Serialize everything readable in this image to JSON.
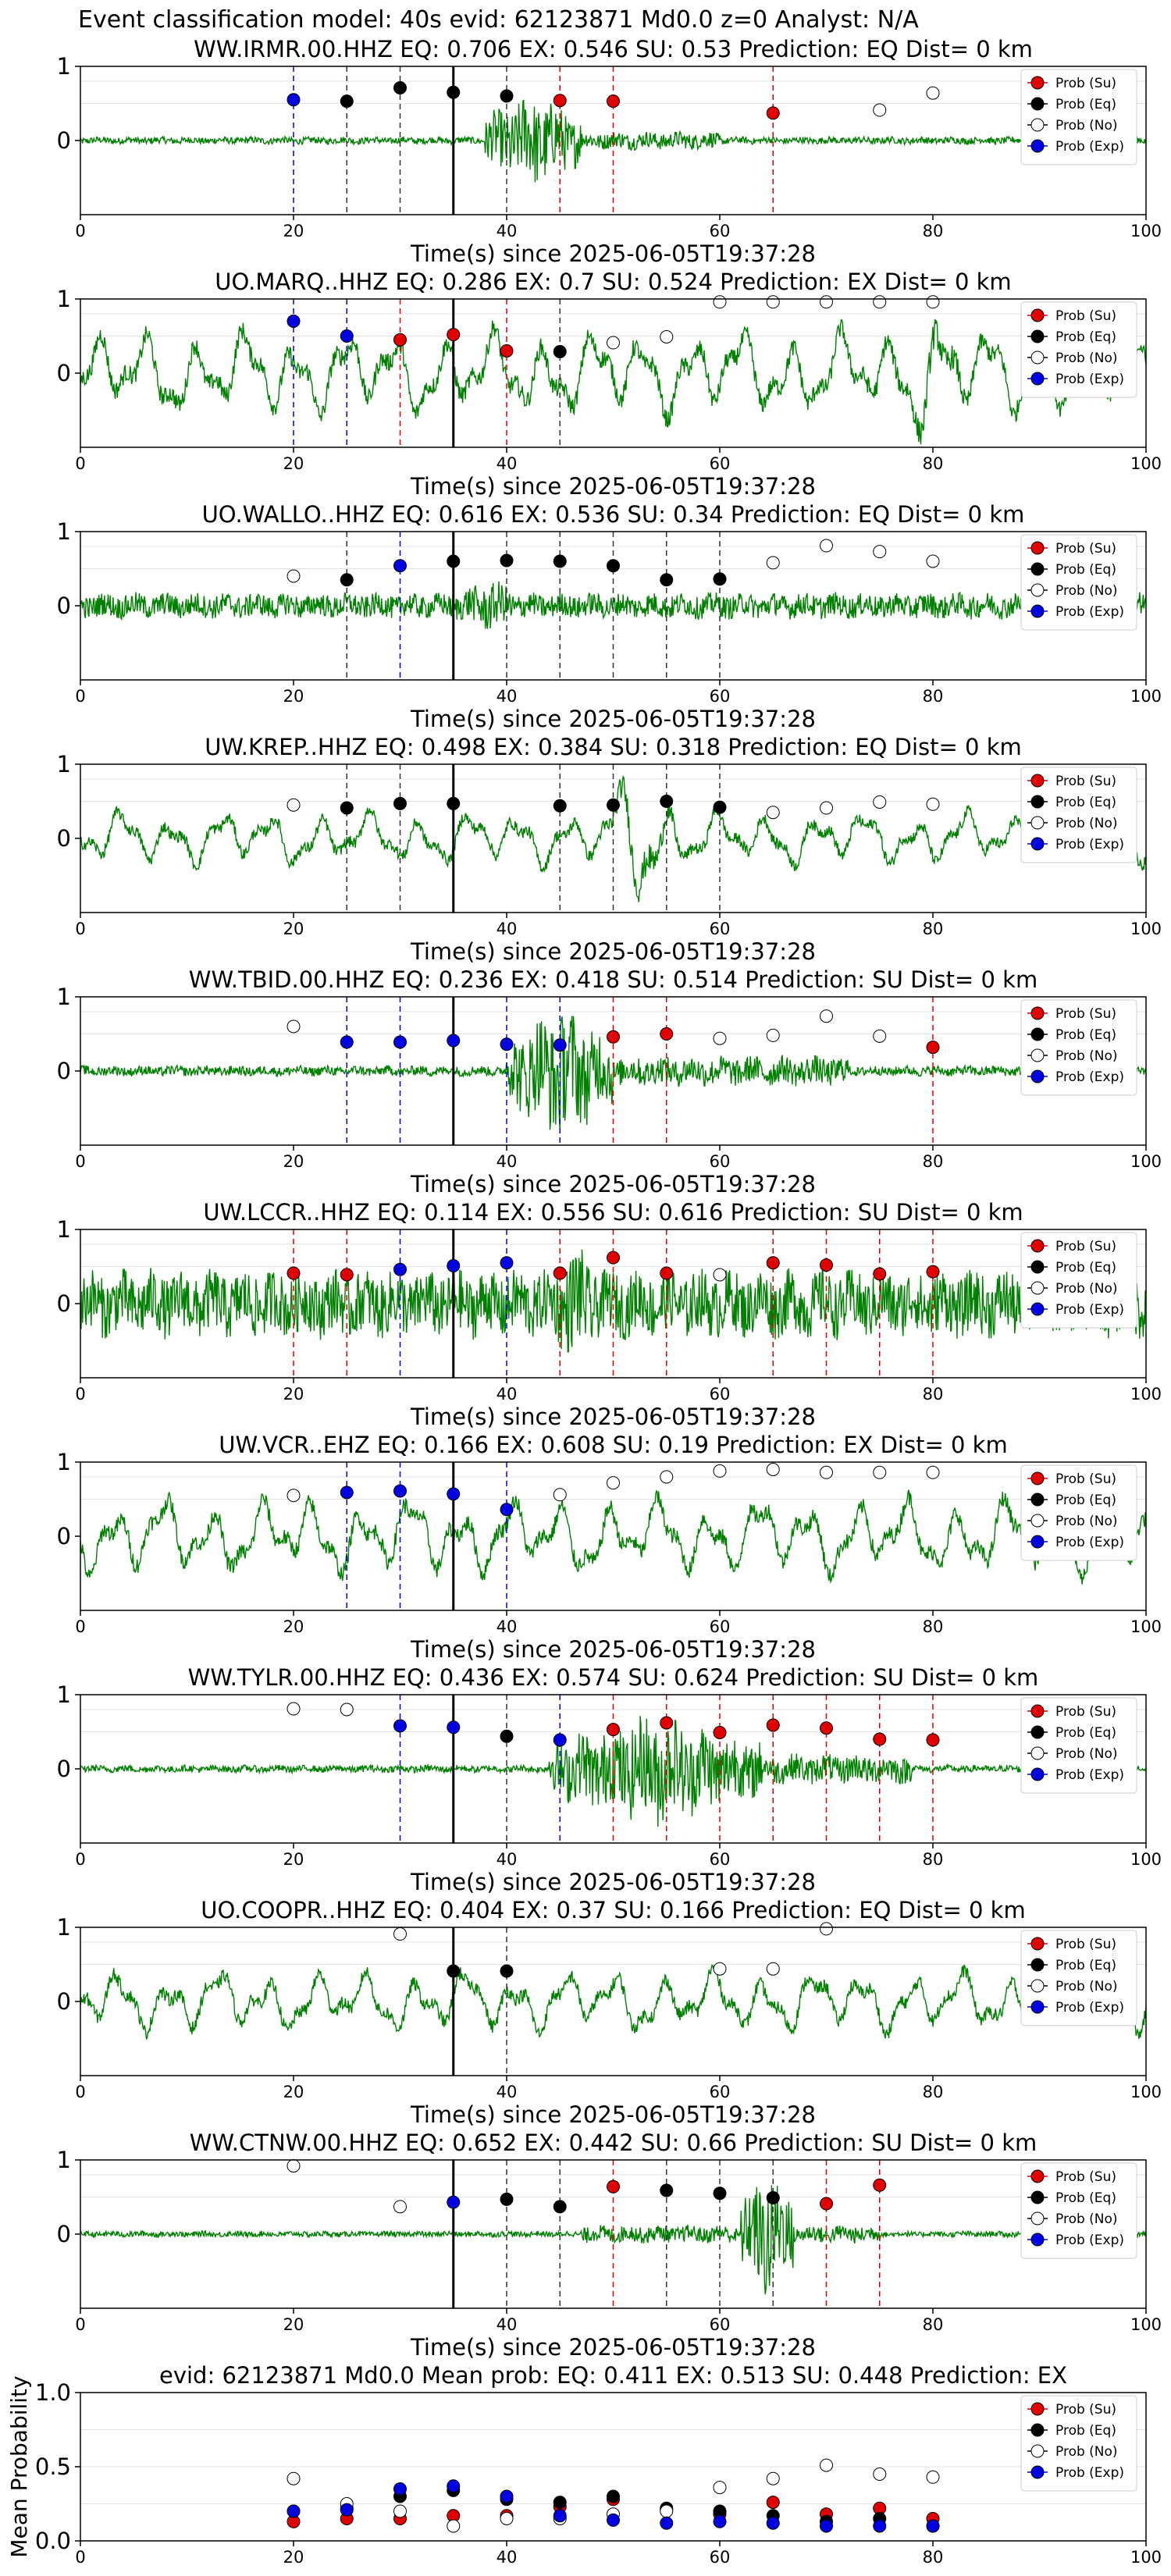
{
  "title": "Event classification model: 40s evid: 62123871 Md0.0 z=0 Analyst: N/A",
  "colors": {
    "su": "#e00000",
    "eq": "#000000",
    "no": "#ffffff",
    "exp": "#0000e0",
    "wave": "#008000"
  },
  "legend": [
    "Prob (Su)",
    "Prob (Eq)",
    "Prob (No)",
    "Prob (Exp)"
  ],
  "chart_data": [
    {
      "type": "line",
      "title": "WW.IRMR.00.HHZ   EQ: 0.706  EX: 0.546  SU: 0.53   Prediction: EQ    Dist= 0 km",
      "xlabel": "Time(s) since 2025-06-05T19:37:28",
      "xlim": [
        0,
        100
      ],
      "ylim": [
        -1,
        1
      ],
      "xticks": [
        0,
        20,
        40,
        60,
        80,
        100
      ],
      "yticks": [
        0,
        1
      ],
      "pick": 35,
      "wave": {
        "amp": 0.05,
        "burst": [
          38,
          47,
          0.65
        ],
        "tail": [
          47,
          60,
          0.12
        ],
        "lowfreq": false
      },
      "points": [
        [
          20,
          0.55,
          "exp"
        ],
        [
          25,
          0.53,
          "eq"
        ],
        [
          30,
          0.71,
          "eq"
        ],
        [
          35,
          0.65,
          "eq"
        ],
        [
          40,
          0.6,
          "eq"
        ],
        [
          45,
          0.54,
          "su"
        ],
        [
          50,
          0.53,
          "su"
        ],
        [
          65,
          0.37,
          "su"
        ],
        [
          75,
          0.41,
          "no"
        ],
        [
          80,
          0.64,
          "no"
        ]
      ]
    },
    {
      "type": "line",
      "title": "UO.MARQ..HHZ   EQ: 0.286  EX: 0.7  SU: 0.524   Prediction: EX    Dist= 0 km",
      "xlabel": "Time(s) since 2025-06-05T19:37:28",
      "xlim": [
        0,
        100
      ],
      "ylim": [
        -1,
        1
      ],
      "xticks": [
        0,
        20,
        40,
        60,
        80,
        100
      ],
      "yticks": [
        0,
        1
      ],
      "pick": 35,
      "wave": {
        "amp": 0.55,
        "burst": [
          75,
          85,
          0.9
        ],
        "tail": [
          0,
          0,
          0
        ],
        "lowfreq": true
      },
      "points": [
        [
          20,
          0.7,
          "exp"
        ],
        [
          25,
          0.5,
          "exp"
        ],
        [
          30,
          0.45,
          "su"
        ],
        [
          35,
          0.52,
          "su"
        ],
        [
          40,
          0.3,
          "su"
        ],
        [
          45,
          0.29,
          "eq"
        ],
        [
          50,
          0.41,
          "no"
        ],
        [
          55,
          0.49,
          "no"
        ],
        [
          60,
          0.96,
          "no"
        ],
        [
          65,
          0.96,
          "no"
        ],
        [
          70,
          0.96,
          "no"
        ],
        [
          75,
          0.96,
          "no"
        ],
        [
          80,
          0.96,
          "no"
        ]
      ]
    },
    {
      "type": "line",
      "title": "UO.WALLO..HHZ   EQ: 0.616  EX: 0.536  SU: 0.34   Prediction: EQ    Dist= 0 km",
      "xlabel": "Time(s) since 2025-06-05T19:37:28",
      "xlim": [
        0,
        100
      ],
      "ylim": [
        -1,
        1
      ],
      "xticks": [
        0,
        20,
        40,
        60,
        80,
        100
      ],
      "yticks": [
        0,
        1
      ],
      "pick": 35,
      "wave": {
        "amp": 0.17,
        "burst": [
          35,
          42,
          0.35
        ],
        "tail": [
          0,
          0,
          0
        ],
        "lowfreq": false
      },
      "points": [
        [
          20,
          0.4,
          "no"
        ],
        [
          25,
          0.35,
          "eq"
        ],
        [
          30,
          0.54,
          "exp"
        ],
        [
          35,
          0.6,
          "eq"
        ],
        [
          40,
          0.61,
          "eq"
        ],
        [
          45,
          0.6,
          "eq"
        ],
        [
          50,
          0.54,
          "eq"
        ],
        [
          55,
          0.35,
          "eq"
        ],
        [
          60,
          0.36,
          "eq"
        ],
        [
          65,
          0.58,
          "no"
        ],
        [
          70,
          0.81,
          "no"
        ],
        [
          75,
          0.73,
          "no"
        ],
        [
          80,
          0.6,
          "no"
        ]
      ]
    },
    {
      "type": "line",
      "title": "UW.KREP..HHZ   EQ: 0.498  EX: 0.384  SU: 0.318   Prediction: EQ    Dist= 0 km",
      "xlabel": "Time(s) since 2025-06-05T19:37:28",
      "xlim": [
        0,
        100
      ],
      "ylim": [
        -1,
        1
      ],
      "xticks": [
        0,
        20,
        40,
        60,
        80,
        100
      ],
      "yticks": [
        0,
        1
      ],
      "pick": 35,
      "wave": {
        "amp": 0.35,
        "burst": [
          49,
          56,
          0.95
        ],
        "tail": [
          0,
          0,
          0
        ],
        "lowfreq": true
      },
      "points": [
        [
          20,
          0.45,
          "no"
        ],
        [
          25,
          0.41,
          "eq"
        ],
        [
          30,
          0.47,
          "eq"
        ],
        [
          35,
          0.47,
          "eq"
        ],
        [
          45,
          0.44,
          "eq"
        ],
        [
          50,
          0.45,
          "eq"
        ],
        [
          55,
          0.5,
          "eq"
        ],
        [
          60,
          0.42,
          "eq"
        ],
        [
          65,
          0.35,
          "no"
        ],
        [
          70,
          0.41,
          "no"
        ],
        [
          75,
          0.49,
          "no"
        ],
        [
          80,
          0.46,
          "no"
        ]
      ]
    },
    {
      "type": "line",
      "title": "WW.TBID.00.HHZ   EQ: 0.236  EX: 0.418  SU: 0.514   Prediction: SU    Dist= 0 km",
      "xlabel": "Time(s) since 2025-06-05T19:37:28",
      "xlim": [
        0,
        100
      ],
      "ylim": [
        -1,
        1
      ],
      "xticks": [
        0,
        20,
        40,
        60,
        80,
        100
      ],
      "yticks": [
        0,
        1
      ],
      "pick": 35,
      "wave": {
        "amp": 0.07,
        "burst": [
          40,
          50,
          0.9
        ],
        "tail": [
          50,
          72,
          0.2
        ],
        "lowfreq": false
      },
      "points": [
        [
          20,
          0.6,
          "no"
        ],
        [
          25,
          0.39,
          "exp"
        ],
        [
          30,
          0.39,
          "exp"
        ],
        [
          35,
          0.41,
          "exp"
        ],
        [
          40,
          0.36,
          "exp"
        ],
        [
          45,
          0.35,
          "exp"
        ],
        [
          50,
          0.46,
          "su"
        ],
        [
          55,
          0.5,
          "su"
        ],
        [
          60,
          0.44,
          "no"
        ],
        [
          65,
          0.48,
          "no"
        ],
        [
          70,
          0.74,
          "no"
        ],
        [
          75,
          0.47,
          "no"
        ],
        [
          80,
          0.32,
          "su"
        ]
      ]
    },
    {
      "type": "line",
      "title": "UW.LCCR..HHZ   EQ: 0.114  EX: 0.556  SU: 0.616   Prediction: SU    Dist= 0 km",
      "xlabel": "Time(s) since 2025-06-05T19:37:28",
      "xlim": [
        0,
        100
      ],
      "ylim": [
        -1,
        1
      ],
      "xticks": [
        0,
        20,
        40,
        60,
        80,
        100
      ],
      "yticks": [
        0,
        1
      ],
      "pick": 35,
      "wave": {
        "amp": 0.45,
        "burst": [
          44,
          49,
          0.8
        ],
        "tail": [
          0,
          0,
          0
        ],
        "lowfreq": false
      },
      "points": [
        [
          20,
          0.41,
          "su"
        ],
        [
          25,
          0.39,
          "su"
        ],
        [
          30,
          0.46,
          "exp"
        ],
        [
          35,
          0.51,
          "exp"
        ],
        [
          40,
          0.55,
          "exp"
        ],
        [
          45,
          0.41,
          "su"
        ],
        [
          50,
          0.62,
          "su"
        ],
        [
          55,
          0.41,
          "su"
        ],
        [
          60,
          0.39,
          "no"
        ],
        [
          65,
          0.55,
          "su"
        ],
        [
          70,
          0.52,
          "su"
        ],
        [
          75,
          0.4,
          "su"
        ],
        [
          80,
          0.43,
          "su"
        ]
      ]
    },
    {
      "type": "line",
      "title": "UW.VCR..EHZ   EQ: 0.166  EX: 0.608  SU: 0.19   Prediction: EX    Dist= 0 km",
      "xlabel": "Time(s) since 2025-06-05T19:37:28",
      "xlim": [
        0,
        100
      ],
      "ylim": [
        -1,
        1
      ],
      "xticks": [
        0,
        20,
        40,
        60,
        80,
        100
      ],
      "yticks": [
        0,
        1
      ],
      "pick": 35,
      "wave": {
        "amp": 0.5,
        "burst": [
          0,
          0,
          0
        ],
        "tail": [
          0,
          0,
          0
        ],
        "lowfreq": true
      },
      "points": [
        [
          20,
          0.55,
          "no"
        ],
        [
          25,
          0.59,
          "exp"
        ],
        [
          30,
          0.61,
          "exp"
        ],
        [
          35,
          0.57,
          "exp"
        ],
        [
          40,
          0.36,
          "exp"
        ],
        [
          45,
          0.56,
          "no"
        ],
        [
          50,
          0.72,
          "no"
        ],
        [
          55,
          0.8,
          "no"
        ],
        [
          60,
          0.88,
          "no"
        ],
        [
          65,
          0.9,
          "no"
        ],
        [
          70,
          0.86,
          "no"
        ],
        [
          75,
          0.86,
          "no"
        ],
        [
          80,
          0.86,
          "no"
        ]
      ]
    },
    {
      "type": "line",
      "title": "WW.TYLR.00.HHZ   EQ: 0.436  EX: 0.574  SU: 0.624   Prediction: SU    Dist= 0 km",
      "xlabel": "Time(s) since 2025-06-05T19:37:28",
      "xlim": [
        0,
        100
      ],
      "ylim": [
        -1,
        1
      ],
      "xticks": [
        0,
        20,
        40,
        60,
        80,
        100
      ],
      "yticks": [
        0,
        1
      ],
      "pick": 35,
      "wave": {
        "amp": 0.05,
        "burst": [
          44,
          64,
          0.75
        ],
        "tail": [
          64,
          78,
          0.2
        ],
        "lowfreq": false
      },
      "points": [
        [
          20,
          0.81,
          "no"
        ],
        [
          25,
          0.8,
          "no"
        ],
        [
          30,
          0.58,
          "exp"
        ],
        [
          35,
          0.56,
          "exp"
        ],
        [
          40,
          0.44,
          "eq"
        ],
        [
          45,
          0.39,
          "exp"
        ],
        [
          50,
          0.53,
          "su"
        ],
        [
          55,
          0.62,
          "su"
        ],
        [
          60,
          0.49,
          "su"
        ],
        [
          65,
          0.59,
          "su"
        ],
        [
          70,
          0.55,
          "su"
        ],
        [
          75,
          0.4,
          "su"
        ],
        [
          80,
          0.39,
          "su"
        ]
      ]
    },
    {
      "type": "line",
      "title": "UO.COOPR..HHZ   EQ: 0.404  EX: 0.37  SU: 0.166   Prediction: EQ    Dist= 0 km",
      "xlabel": "Time(s) since 2025-06-05T19:37:28",
      "xlim": [
        0,
        100
      ],
      "ylim": [
        -1,
        1
      ],
      "xticks": [
        0,
        20,
        40,
        60,
        80,
        100
      ],
      "yticks": [
        0,
        1
      ],
      "pick": 35,
      "wave": {
        "amp": 0.4,
        "burst": [
          0,
          0,
          0
        ],
        "tail": [
          0,
          0,
          0
        ],
        "lowfreq": true
      },
      "points": [
        [
          30,
          0.91,
          "no"
        ],
        [
          35,
          0.41,
          "eq"
        ],
        [
          40,
          0.41,
          "eq"
        ],
        [
          60,
          0.44,
          "no"
        ],
        [
          65,
          0.44,
          "no"
        ],
        [
          70,
          0.98,
          "no"
        ]
      ]
    },
    {
      "type": "line",
      "title": "WW.CTNW.00.HHZ   EQ: 0.652  EX: 0.442  SU: 0.66   Prediction: SU    Dist= 0 km",
      "xlabel": "Time(s) since 2025-06-05T19:37:28",
      "xlim": [
        0,
        100
      ],
      "ylim": [
        -1,
        1
      ],
      "xticks": [
        0,
        20,
        40,
        60,
        80,
        100
      ],
      "yticks": [
        0,
        1
      ],
      "pick": 35,
      "wave": {
        "amp": 0.04,
        "burst": [
          62,
          67,
          0.9
        ],
        "tail": [
          47,
          75,
          0.12
        ],
        "lowfreq": false
      },
      "points": [
        [
          20,
          0.92,
          "no"
        ],
        [
          30,
          0.37,
          "no"
        ],
        [
          35,
          0.43,
          "exp"
        ],
        [
          40,
          0.47,
          "eq"
        ],
        [
          45,
          0.37,
          "eq"
        ],
        [
          50,
          0.64,
          "su"
        ],
        [
          55,
          0.59,
          "eq"
        ],
        [
          60,
          0.55,
          "eq"
        ],
        [
          65,
          0.49,
          "eq"
        ],
        [
          70,
          0.41,
          "su"
        ],
        [
          75,
          0.66,
          "su"
        ]
      ]
    },
    {
      "type": "scatter",
      "title": "evid: 62123871  Md0.0   Mean prob:   EQ: 0.411  EX: 0.513  SU: 0.448   Prediction: EX",
      "xlabel": "",
      "ylabel": "Mean Probability",
      "xlim": [
        0,
        100
      ],
      "ylim": [
        0,
        1
      ],
      "xticks": [
        0,
        20,
        40,
        60,
        80,
        100
      ],
      "yticks": [
        0.0,
        0.5,
        1.0
      ],
      "ytick_labels": [
        "0.0",
        "0.5",
        "1.0"
      ],
      "series": [
        {
          "name": "Prob (Su)",
          "key": "su",
          "x": [
            20,
            25,
            30,
            35,
            40,
            45,
            50,
            55,
            60,
            65,
            70,
            75,
            80
          ],
          "values": [
            0.13,
            0.15,
            0.15,
            0.17,
            0.17,
            0.23,
            0.28,
            0.21,
            0.18,
            0.26,
            0.18,
            0.22,
            0.15
          ]
        },
        {
          "name": "Prob (Eq)",
          "key": "eq",
          "x": [
            20,
            25,
            30,
            35,
            40,
            45,
            50,
            55,
            60,
            65,
            70,
            75,
            80
          ],
          "values": [
            0.2,
            0.22,
            0.3,
            0.34,
            0.28,
            0.26,
            0.3,
            0.22,
            0.2,
            0.17,
            0.13,
            0.15,
            0.1
          ]
        },
        {
          "name": "Prob (No)",
          "key": "no",
          "x": [
            20,
            25,
            30,
            35,
            40,
            45,
            50,
            55,
            60,
            65,
            70,
            75,
            80
          ],
          "values": [
            0.42,
            0.25,
            0.2,
            0.1,
            0.15,
            0.15,
            0.18,
            0.2,
            0.36,
            0.42,
            0.51,
            0.45,
            0.43
          ]
        },
        {
          "name": "Prob (Exp)",
          "key": "exp",
          "x": [
            20,
            25,
            30,
            35,
            40,
            45,
            50,
            55,
            60,
            65,
            70,
            75,
            80
          ],
          "values": [
            0.2,
            0.21,
            0.35,
            0.37,
            0.3,
            0.17,
            0.14,
            0.12,
            0.13,
            0.12,
            0.1,
            0.1,
            0.1
          ]
        }
      ]
    }
  ]
}
